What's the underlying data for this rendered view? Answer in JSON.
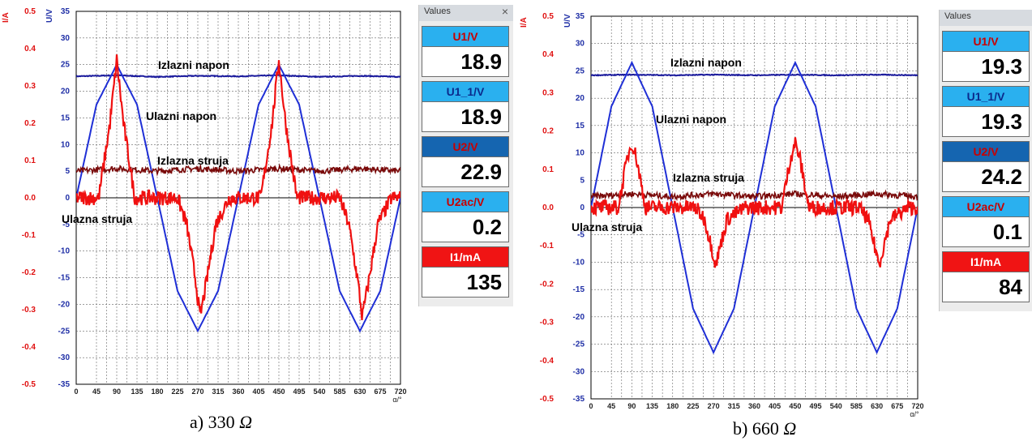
{
  "chart_data": [
    {
      "type": "line",
      "caption": "a) 330",
      "caption_unit": "Ω",
      "x_label": "α/°",
      "y_label_current": "I/A",
      "y_label_voltage": "U/V",
      "xlim": [
        0,
        720
      ],
      "ylim_current": [
        -0.5,
        0.5
      ],
      "ylim_voltage": [
        -35,
        35
      ],
      "x_ticks": [
        0,
        45,
        90,
        135,
        180,
        225,
        270,
        315,
        360,
        405,
        450,
        495,
        540,
        585,
        630,
        675,
        720
      ],
      "y_ticks_current": [
        "0.5",
        "0.4",
        "0.3",
        "0.2",
        "0.1",
        "0.0",
        "-0.1",
        "-0.2",
        "-0.3",
        "-0.4",
        "-0.5"
      ],
      "y_ticks_voltage": [
        "35",
        "30",
        "25",
        "20",
        "15",
        "10",
        "5",
        "0",
        "-5",
        "-10",
        "-15",
        "-20",
        "-25",
        "-30",
        "-35"
      ],
      "grid": true,
      "annotations": [
        "Izlazni napon",
        "Ulazni napon",
        "Izlazna struja",
        "Ulazna struja"
      ],
      "series": [
        {
          "name": "Izlazni napon",
          "axis": "voltage",
          "color": "#1a1a9c",
          "x": [
            0,
            90,
            180,
            270,
            360,
            450,
            540,
            630,
            720
          ],
          "y": [
            22.8,
            23.0,
            22.7,
            22.9,
            22.8,
            23.0,
            22.7,
            22.9,
            22.7
          ]
        },
        {
          "name": "Ulazni napon",
          "axis": "voltage",
          "color": "#1f2fd6",
          "x": [
            0,
            45,
            90,
            135,
            180,
            225,
            270,
            315,
            360,
            405,
            450,
            495,
            540,
            585,
            630,
            675,
            720
          ],
          "y": [
            0,
            17.5,
            25,
            17.5,
            0,
            -17.5,
            -25,
            -17.5,
            0,
            17.5,
            25,
            17.5,
            0,
            -17.5,
            -25,
            -17.5,
            0
          ]
        },
        {
          "name": "Izlazna struja",
          "axis": "voltage",
          "color": "#7a0a0a",
          "x": [
            0,
            90,
            180,
            270,
            360,
            450,
            540,
            630,
            720
          ],
          "y": [
            5,
            5.5,
            5,
            5.5,
            5,
            5.5,
            5,
            5.5,
            5
          ]
        },
        {
          "name": "Ulazna struja",
          "axis": "current",
          "color": "#f01010",
          "x": [
            0,
            20,
            50,
            75,
            90,
            105,
            130,
            160,
            225,
            245,
            265,
            275,
            290,
            310,
            340,
            385,
            410,
            435,
            450,
            465,
            490,
            520,
            585,
            605,
            625,
            635,
            650,
            670,
            700,
            720
          ],
          "y": [
            0,
            0,
            0,
            0.2,
            0.37,
            0.2,
            0,
            0,
            0,
            -0.07,
            -0.22,
            -0.32,
            -0.22,
            -0.07,
            0,
            0,
            0,
            0.2,
            0.37,
            0.2,
            0,
            0,
            0,
            -0.07,
            -0.22,
            -0.32,
            -0.22,
            -0.07,
            0,
            0
          ]
        }
      ]
    },
    {
      "type": "line",
      "caption": "b) 660",
      "caption_unit": "Ω",
      "x_label": "α/°",
      "y_label_current": "I/A",
      "y_label_voltage": "U/V",
      "xlim": [
        0,
        720
      ],
      "ylim_current": [
        -0.5,
        0.5
      ],
      "ylim_voltage": [
        -35,
        35
      ],
      "x_ticks": [
        0,
        45,
        90,
        135,
        180,
        225,
        270,
        315,
        360,
        405,
        450,
        495,
        540,
        585,
        630,
        675,
        720
      ],
      "y_ticks_current": [
        "0.5",
        "0.4",
        "0.3",
        "0.2",
        "0.1",
        "0.0",
        "-0.1",
        "-0.2",
        "-0.3",
        "-0.4",
        "-0.5"
      ],
      "y_ticks_voltage": [
        "35",
        "30",
        "25",
        "20",
        "15",
        "10",
        "5",
        "0",
        "-5",
        "-10",
        "-15",
        "-20",
        "-25",
        "-30",
        "-35"
      ],
      "grid": true,
      "annotations": [
        "Izlazni napon",
        "Ulazni napon",
        "Izlazna struja",
        "Ulazna struja"
      ],
      "series": [
        {
          "name": "Izlazni napon",
          "axis": "voltage",
          "color": "#1a1a9c",
          "x": [
            0,
            90,
            180,
            270,
            360,
            450,
            540,
            630,
            720
          ],
          "y": [
            24.2,
            24.3,
            24.2,
            24.3,
            24.2,
            24.3,
            24.2,
            24.3,
            24.2
          ]
        },
        {
          "name": "Ulazni napon",
          "axis": "voltage",
          "color": "#1f2fd6",
          "x": [
            0,
            45,
            90,
            135,
            180,
            225,
            270,
            315,
            360,
            405,
            450,
            495,
            540,
            585,
            630,
            675,
            720
          ],
          "y": [
            0,
            18.5,
            26.5,
            18.5,
            0,
            -18.5,
            -26.5,
            -18.5,
            0,
            18.5,
            26.5,
            18.5,
            0,
            -18.5,
            -26.5,
            -18.5,
            0
          ]
        },
        {
          "name": "Izlazna struja",
          "axis": "voltage",
          "color": "#7a0a0a",
          "x": [
            0,
            90,
            180,
            270,
            360,
            450,
            540,
            630,
            720
          ],
          "y": [
            2,
            2.5,
            2,
            2.5,
            2,
            2.5,
            2,
            2.5,
            2
          ]
        },
        {
          "name": "Ulazna struja",
          "axis": "current",
          "color": "#f01010",
          "x": [
            0,
            30,
            60,
            80,
            90,
            100,
            120,
            160,
            230,
            250,
            265,
            275,
            285,
            300,
            340,
            400,
            420,
            440,
            450,
            460,
            480,
            520,
            590,
            610,
            625,
            635,
            645,
            660,
            700,
            720
          ],
          "y": [
            0,
            0,
            0,
            0.13,
            0.17,
            0.13,
            0,
            0,
            0,
            -0.03,
            -0.1,
            -0.15,
            -0.1,
            -0.03,
            0,
            0,
            0,
            0.13,
            0.17,
            0.13,
            0,
            0,
            0,
            -0.03,
            -0.1,
            -0.15,
            -0.1,
            -0.03,
            0,
            0
          ]
        }
      ]
    }
  ],
  "panels": [
    {
      "title": "Values",
      "close": "×",
      "items": [
        {
          "label": "U1/V",
          "value": "18.9",
          "head_bg": "#2ab0ef",
          "head_fg": "#c80000"
        },
        {
          "label": "U1_1/V",
          "value": "18.9",
          "head_bg": "#2ab0ef",
          "head_fg": "#0b2a8c"
        },
        {
          "label": "U2/V",
          "value": "22.9",
          "head_bg": "#1565b0",
          "head_fg": "#c80000"
        },
        {
          "label": "U2ac/V",
          "value": "0.2",
          "head_bg": "#2ab0ef",
          "head_fg": "#c80000"
        },
        {
          "label": "I1/mA",
          "value": "135",
          "head_bg": "#f01414",
          "head_fg": "#ffffff"
        }
      ]
    },
    {
      "title": "Values",
      "close": "",
      "items": [
        {
          "label": "U1/V",
          "value": "19.3",
          "head_bg": "#2ab0ef",
          "head_fg": "#c80000"
        },
        {
          "label": "U1_1/V",
          "value": "19.3",
          "head_bg": "#2ab0ef",
          "head_fg": "#0b2a8c"
        },
        {
          "label": "U2/V",
          "value": "24.2",
          "head_bg": "#1565b0",
          "head_fg": "#c80000"
        },
        {
          "label": "U2ac/V",
          "value": "0.1",
          "head_bg": "#2ab0ef",
          "head_fg": "#c80000"
        },
        {
          "label": "I1/mA",
          "value": "84",
          "head_bg": "#f01414",
          "head_fg": "#ffffff"
        }
      ]
    }
  ]
}
